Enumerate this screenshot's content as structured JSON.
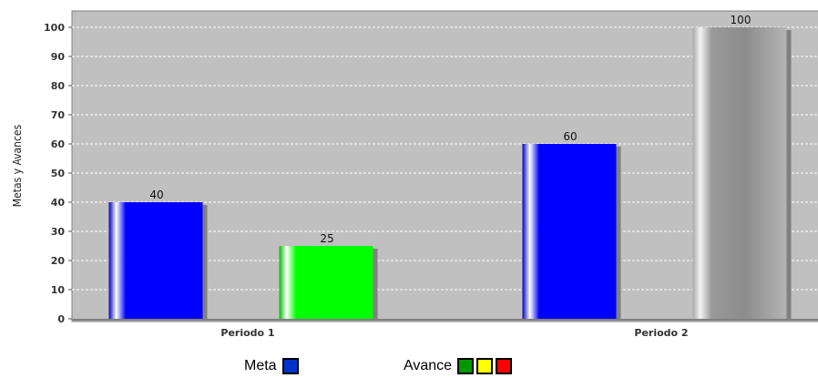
{
  "chart_data": {
    "type": "bar",
    "ylabel": "Metas y Avances",
    "ylim": [
      0,
      105
    ],
    "yticks": [
      0,
      10,
      20,
      30,
      40,
      50,
      60,
      70,
      80,
      90,
      100
    ],
    "grid": true,
    "categories": [
      "Periodo 1",
      "Periodo 2"
    ],
    "bars": [
      {
        "category": "Periodo 1",
        "value": 40,
        "label": "40",
        "color": "#0000ff"
      },
      {
        "category": "Periodo 1",
        "value": 25,
        "label": "25",
        "color": "#00ff00"
      },
      {
        "category": "Periodo 2",
        "value": 60,
        "label": "60",
        "color": "#0000ff"
      },
      {
        "category": "Periodo 2",
        "value": 100,
        "label": "100",
        "color": "#909090"
      }
    ],
    "legend_placement": "bottom-center"
  },
  "legend": {
    "meta": {
      "label": "Meta",
      "color": "#0033cc"
    },
    "avance": {
      "label": "Avance",
      "colors": [
        "#009900",
        "#ffff00",
        "#ff0000"
      ]
    }
  }
}
